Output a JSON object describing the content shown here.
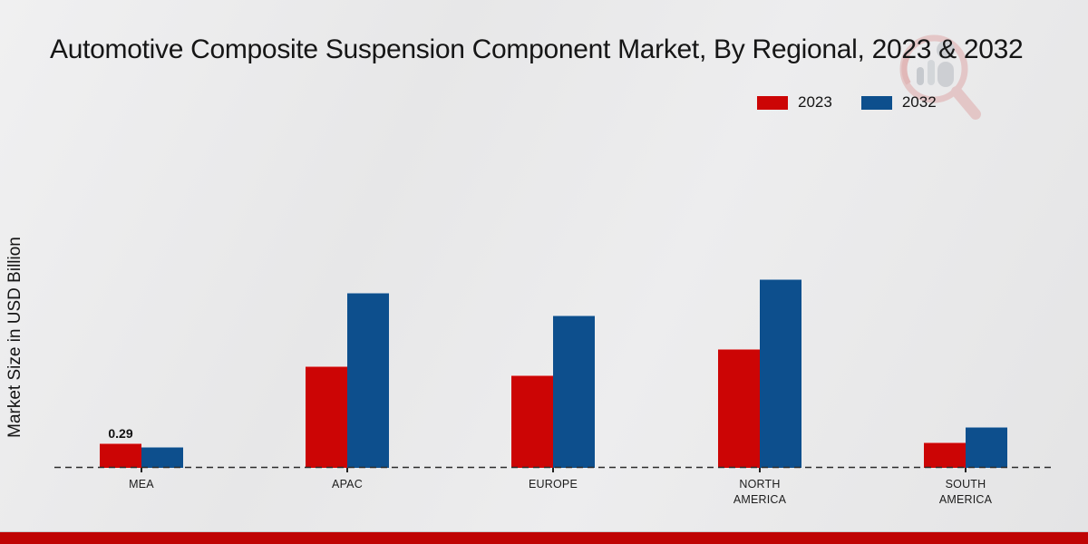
{
  "title": "Automotive Composite Suspension Component Market, By Regional, 2023 & 2032",
  "y_axis_label": "Market Size in USD Billion",
  "legend": [
    {
      "label": "2023",
      "color": "#cc0505"
    },
    {
      "label": "2032",
      "color": "#0d4f8d"
    }
  ],
  "watermark": "market-research-future-logo",
  "colors": {
    "bar_2023": "#cc0505",
    "bar_2032": "#0d4f8d",
    "footer_strip": "#bf0404",
    "baseline": "#2b2b2b",
    "background": "#e9e9ea"
  },
  "chart_data": {
    "type": "bar",
    "title": "Automotive Composite Suspension Component Market, By Regional, 2023 & 2032",
    "categories": [
      "MEA",
      "APAC",
      "EUROPE",
      "NORTH\nAMERICA",
      "SOUTH\nAMERICA"
    ],
    "series": [
      {
        "name": "2023",
        "color": "#cc0505",
        "values": [
          0.29,
          1.2,
          1.1,
          1.41,
          0.3
        ]
      },
      {
        "name": "2032",
        "color": "#0d4f8d",
        "values": [
          0.25,
          2.07,
          1.81,
          2.24,
          0.48
        ]
      }
    ],
    "data_labels": [
      {
        "series_index": 0,
        "category_index": 0,
        "text": "0.29"
      }
    ],
    "xlabel": "",
    "ylabel": "Market Size in USD Billion",
    "ylim": [
      0,
      2.5
    ],
    "grid": false,
    "legend_position": "top-right",
    "baseline_style": "dashed"
  }
}
